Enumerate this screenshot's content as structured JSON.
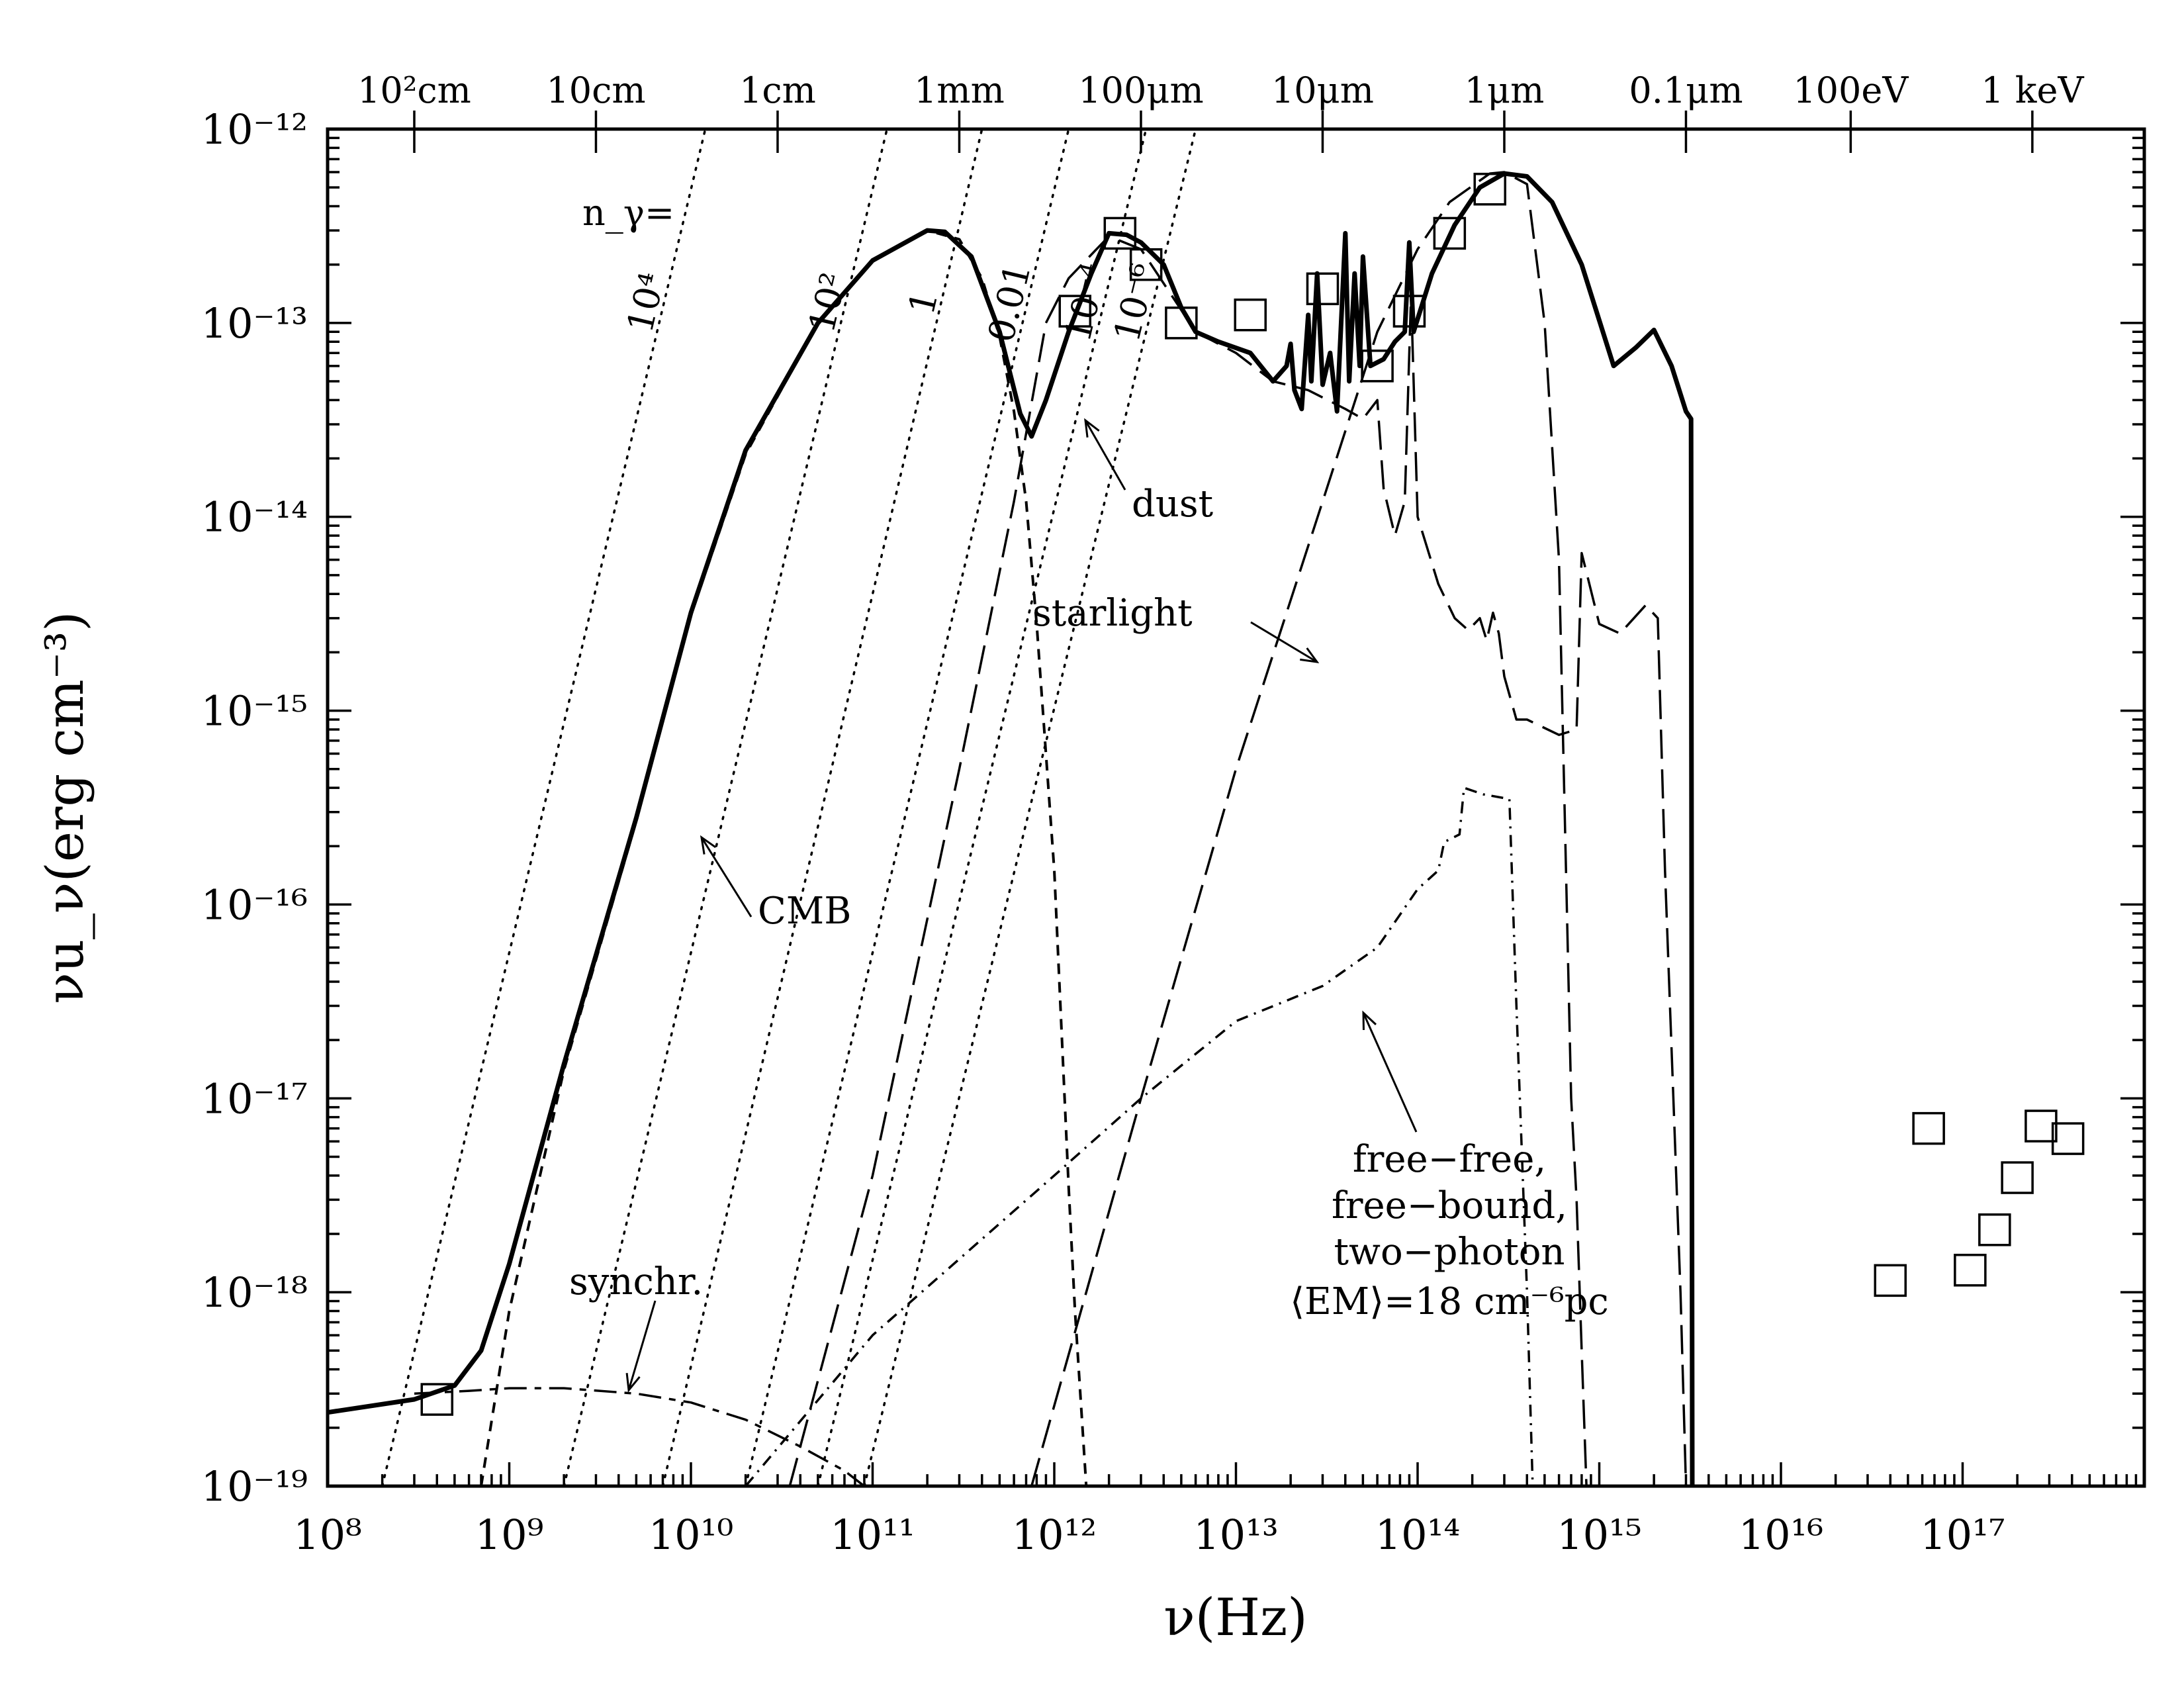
{
  "chart_data": {
    "type": "line",
    "xlabel": "ν(Hz)",
    "ylabel": "νu_ν(erg cm⁻³)",
    "x_scale": "log",
    "y_scale": "log",
    "xlim": [
      100000000.0,
      1e+18
    ],
    "ylim": [
      1e-19,
      1e-12
    ],
    "x_ticks": [
      {
        "value": 100000000.0,
        "label": "10⁸"
      },
      {
        "value": 1000000000.0,
        "label": "10⁹"
      },
      {
        "value": 10000000000.0,
        "label": "10¹⁰"
      },
      {
        "value": 100000000000.0,
        "label": "10¹¹"
      },
      {
        "value": 1000000000000.0,
        "label": "10¹²"
      },
      {
        "value": 10000000000000.0,
        "label": "10¹³"
      },
      {
        "value": 100000000000000.0,
        "label": "10¹⁴"
      },
      {
        "value": 1000000000000000.0,
        "label": "10¹⁵"
      },
      {
        "value": 1e+16,
        "label": "10¹⁶"
      },
      {
        "value": 1e+17,
        "label": "10¹⁷"
      }
    ],
    "y_ticks": [
      {
        "value": 1e-19,
        "label": "10⁻¹⁹"
      },
      {
        "value": 1e-18,
        "label": "10⁻¹⁸"
      },
      {
        "value": 1e-17,
        "label": "10⁻¹⁷"
      },
      {
        "value": 1e-16,
        "label": "10⁻¹⁶"
      },
      {
        "value": 1e-15,
        "label": "10⁻¹⁵"
      },
      {
        "value": 1e-14,
        "label": "10⁻¹⁴"
      },
      {
        "value": 1e-13,
        "label": "10⁻¹³"
      },
      {
        "value": 1e-12,
        "label": "10⁻¹²"
      }
    ],
    "top_ticks": [
      {
        "value": 300000000.0,
        "label": "10²cm"
      },
      {
        "value": 3000000000.0,
        "label": "10cm"
      },
      {
        "value": 30000000000.0,
        "label": "1cm"
      },
      {
        "value": 300000000000.0,
        "label": "1mm"
      },
      {
        "value": 3000000000000.0,
        "label": "100μm"
      },
      {
        "value": 30000000000000.0,
        "label": "10μm"
      },
      {
        "value": 300000000000000.0,
        "label": "1μm"
      },
      {
        "value": 3000000000000000.0,
        "label": "0.1μm"
      },
      {
        "value": 2.42e+16,
        "label": "100eV"
      },
      {
        "value": 2.42e+17,
        "label": "1 keV"
      }
    ],
    "photon_density_lines": [
      {
        "label": "10⁴",
        "x_at_bottom": 200000000.0,
        "x_at_top": 12000000000.0
      },
      {
        "label": "10²",
        "x_at_bottom": 2000000000.0,
        "x_at_top": 120000000000.0
      },
      {
        "label": "1",
        "x_at_bottom": 7000000000.0,
        "x_at_top": 400000000000.0
      },
      {
        "label": "0.01",
        "x_at_bottom": 20000000000.0,
        "x_at_top": 1200000000000.0
      },
      {
        "label": "10⁻⁴",
        "x_at_bottom": 50000000000.0,
        "x_at_top": 3200000000000.0
      },
      {
        "label": "10⁻⁶",
        "x_at_bottom": 90000000000.0,
        "x_at_top": 6000000000000.0
      }
    ],
    "n_gamma_label": "n_γ=",
    "series": [
      {
        "style": "solid-thick",
        "points": [
          [
            100000000.0,
            2.4e-19
          ],
          [
            300000000.0,
            2.8e-19
          ],
          [
            500000000.0,
            3.3e-19
          ],
          [
            700000000.0,
            5e-19
          ],
          [
            1000000000.0,
            1.4e-18
          ],
          [
            2000000000.0,
            1.5e-17
          ],
          [
            5000000000.0,
            2.8e-16
          ],
          [
            10000000000.0,
            3.2e-15
          ],
          [
            20000000000.0,
            2.2e-14
          ],
          [
            50000000000.0,
            1e-13
          ],
          [
            100000000000.0,
            2.1e-13
          ],
          [
            200000000000.0,
            3e-13
          ],
          [
            250000000000.0,
            2.95e-13
          ],
          [
            350000000000.0,
            2.2e-13
          ],
          [
            500000000000.0,
            9e-14
          ],
          [
            650000000000.0,
            3.4e-14
          ],
          [
            750000000000.0,
            2.6e-14
          ],
          [
            900000000000.0,
            4e-14
          ],
          [
            1200000000000.0,
            9e-14
          ],
          [
            1600000000000.0,
            1.8e-13
          ],
          [
            2000000000000.0,
            2.9e-13
          ],
          [
            2500000000000.0,
            2.85e-13
          ],
          [
            3000000000000.0,
            2.6e-13
          ],
          [
            4000000000000.0,
            2e-13
          ],
          [
            5000000000000.0,
            1.2e-13
          ],
          [
            6000000000000.0,
            9e-14
          ],
          [
            8000000000000.0,
            8e-14
          ],
          [
            12000000000000.0,
            7e-14
          ],
          [
            16000000000000.0,
            5e-14
          ],
          [
            19000000000000.0,
            6e-14
          ],
          [
            20000000000000.0,
            7.8e-14
          ],
          [
            21000000000000.0,
            4.5e-14
          ],
          [
            23000000000000.0,
            3.6e-14
          ],
          [
            25000000000000.0,
            1.1e-13
          ],
          [
            26000000000000.0,
            5e-14
          ],
          [
            28000000000000.0,
            1.8e-13
          ],
          [
            30000000000000.0,
            4.8e-14
          ],
          [
            33000000000000.0,
            7e-14
          ],
          [
            36000000000000.0,
            3.5e-14
          ],
          [
            40000000000000.0,
            2.9e-13
          ],
          [
            42000000000000.0,
            5e-14
          ],
          [
            45000000000000.0,
            1.8e-13
          ],
          [
            48000000000000.0,
            6e-14
          ],
          [
            50000000000000.0,
            2.2e-13
          ],
          [
            55000000000000.0,
            6e-14
          ],
          [
            65000000000000.0,
            6.5e-14
          ],
          [
            75000000000000.0,
            8e-14
          ],
          [
            85000000000000.0,
            9e-14
          ],
          [
            90000000000000.0,
            2.6e-13
          ],
          [
            95000000000000.0,
            9e-14
          ],
          [
            120000000000000.0,
            1.8e-13
          ],
          [
            160000000000000.0,
            3.2e-13
          ],
          [
            220000000000000.0,
            5e-13
          ],
          [
            300000000000000.0,
            5.9e-13
          ],
          [
            400000000000000.0,
            5.7e-13
          ],
          [
            550000000000000.0,
            4.2e-13
          ],
          [
            800000000000000.0,
            2e-13
          ],
          [
            1200000000000000.0,
            6e-14
          ],
          [
            1600000000000000.0,
            7.5e-14
          ],
          [
            2000000000000000.0,
            9.2e-14
          ],
          [
            2500000000000000.0,
            6e-14
          ],
          [
            3000000000000000.0,
            3.5e-14
          ],
          [
            3200000000000000.0,
            3.2e-14
          ],
          [
            3250000000000000.0,
            1e-19
          ]
        ]
      },
      {
        "style": "short-dash",
        "points": [
          [
            700000000.0,
            1e-19
          ],
          [
            1000000000.0,
            8e-19
          ],
          [
            2000000000.0,
            1.4e-17
          ],
          [
            5000000000.0,
            2.7e-16
          ],
          [
            10000000000.0,
            3.1e-15
          ],
          [
            20000000000.0,
            2.1e-14
          ],
          [
            50000000000.0,
            1e-13
          ],
          [
            100000000000.0,
            2.1e-13
          ],
          [
            200000000000.0,
            3e-13
          ],
          [
            300000000000.0,
            2.7e-13
          ],
          [
            400000000000.0,
            1.7e-13
          ],
          [
            500000000000.0,
            8.5e-14
          ],
          [
            600000000000.0,
            3.5e-14
          ],
          [
            700000000000.0,
            1.2e-14
          ],
          [
            800000000000.0,
            2.8e-15
          ],
          [
            1000000000000.0,
            1.5e-16
          ],
          [
            1200000000000.0,
            3.5e-18
          ],
          [
            1300000000000.0,
            8e-19
          ],
          [
            1500000000000.0,
            1e-19
          ]
        ]
      },
      {
        "style": "long-dash",
        "points": [
          [
            35000000000.0,
            1e-19
          ],
          [
            100000000000.0,
            4e-18
          ],
          [
            300000000000.0,
            5e-16
          ],
          [
            600000000000.0,
            1.2e-14
          ],
          [
            900000000000.0,
            1e-13
          ],
          [
            1200000000000.0,
            1.7e-13
          ],
          [
            2000000000000.0,
            2.8e-13
          ],
          [
            3000000000000.0,
            2.4e-13
          ],
          [
            4000000000000.0,
            1.6e-13
          ],
          [
            6000000000000.0,
            9e-14
          ],
          [
            10000000000000.0,
            7e-14
          ],
          [
            16000000000000.0,
            5e-14
          ],
          [
            25000000000000.0,
            4.5e-14
          ],
          [
            40000000000000.0,
            3.6e-14
          ],
          [
            50000000000000.0,
            3.2e-14
          ],
          [
            60000000000000.0,
            4e-14
          ],
          [
            65000000000000.0,
            1.4e-14
          ],
          [
            75000000000000.0,
            8e-15
          ],
          [
            85000000000000.0,
            1.2e-14
          ],
          [
            92000000000000.0,
            1.4e-13
          ],
          [
            100000000000000.0,
            1e-14
          ],
          [
            130000000000000.0,
            4.5e-15
          ],
          [
            160000000000000.0,
            3e-15
          ],
          [
            190000000000000.0,
            2.6e-15
          ],
          [
            220000000000000.0,
            3e-15
          ],
          [
            240000000000000.0,
            2.3e-15
          ],
          [
            260000000000000.0,
            3.2e-15
          ],
          [
            280000000000000.0,
            2.5e-15
          ],
          [
            300000000000000.0,
            1.5e-15
          ],
          [
            350000000000000.0,
            9e-16
          ],
          [
            400000000000000.0,
            9e-16
          ],
          [
            600000000000000.0,
            7.5e-16
          ],
          [
            750000000000000.0,
            8e-16
          ],
          [
            800000000000000.0,
            6.5e-15
          ],
          [
            1000000000000000.0,
            2.8e-15
          ],
          [
            1300000000000000.0,
            2.5e-15
          ],
          [
            1800000000000000.0,
            3.5e-15
          ],
          [
            2100000000000000.0,
            3e-15
          ],
          [
            2300000000000000.0,
            1.5e-16
          ],
          [
            2800000000000000.0,
            1e-18
          ],
          [
            3000000000000000.0,
            1e-19
          ]
        ]
      },
      {
        "style": "long-dash",
        "points": [
          [
            750000000000.0,
            1e-19
          ],
          [
            1500000000000.0,
            1e-18
          ],
          [
            3000000000000.0,
            1e-17
          ],
          [
            10000000000000.0,
            5e-16
          ],
          [
            30000000000000.0,
            1.2e-14
          ],
          [
            60000000000000.0,
            9e-14
          ],
          [
            100000000000000.0,
            2.4e-13
          ],
          [
            150000000000000.0,
            4.2e-13
          ],
          [
            250000000000000.0,
            5.9e-13
          ],
          [
            300000000000000.0,
            6e-13
          ],
          [
            400000000000000.0,
            5.2e-13
          ],
          [
            500000000000000.0,
            1e-13
          ],
          [
            600000000000000.0,
            6e-15
          ],
          [
            700000000000000.0,
            1e-17
          ],
          [
            750000000000000.0,
            3e-18
          ],
          [
            800000000000000.0,
            5e-19
          ],
          [
            850000000000000.0,
            1e-19
          ]
        ]
      },
      {
        "style": "dash-dot",
        "points": [
          [
            20000000000.0,
            1e-19
          ],
          [
            100000000000.0,
            6e-19
          ],
          [
            1000000000000.0,
            4e-18
          ],
          [
            3000000000000.0,
            1e-17
          ],
          [
            10000000000000.0,
            2.5e-17
          ],
          [
            30000000000000.0,
            3.8e-17
          ],
          [
            60000000000000.0,
            6e-17
          ],
          [
            100000000000000.0,
            1.2e-16
          ],
          [
            130000000000000.0,
            1.5e-16
          ],
          [
            140000000000000.0,
            2.1e-16
          ],
          [
            170000000000000.0,
            2.3e-16
          ],
          [
            180000000000000.0,
            4e-16
          ],
          [
            230000000000000.0,
            3.7e-16
          ],
          [
            320000000000000.0,
            3.5e-16
          ],
          [
            350000000000000.0,
            3e-17
          ],
          [
            400000000000000.0,
            1e-18
          ],
          [
            430000000000000.0,
            1e-19
          ]
        ]
      },
      {
        "style": "long-dash-short",
        "points": [
          [
            300000000.0,
            3e-19
          ],
          [
            600000000.0,
            3.1e-19
          ],
          [
            1000000000.0,
            3.2e-19
          ],
          [
            2000000000.0,
            3.2e-19
          ],
          [
            5000000000.0,
            3e-19
          ],
          [
            10000000000.0,
            2.7e-19
          ],
          [
            20000000000.0,
            2.2e-19
          ],
          [
            40000000000.0,
            1.6e-19
          ],
          [
            70000000000.0,
            1.2e-19
          ],
          [
            90000000000.0,
            1e-19
          ]
        ]
      }
    ],
    "data_points": [
      [
        400000000.0,
        2.8e-19
      ],
      [
        1300000000000.0,
        1.15e-13
      ],
      [
        2300000000000.0,
        2.9e-13
      ],
      [
        3200000000000.0,
        2e-13
      ],
      [
        5000000000000.0,
        1e-13
      ],
      [
        12000000000000.0,
        1.1e-13
      ],
      [
        30000000000000.0,
        1.5e-13
      ],
      [
        60000000000000.0,
        6e-14
      ],
      [
        90000000000000.0,
        1.15e-13
      ],
      [
        150000000000000.0,
        2.9e-13
      ],
      [
        250000000000000.0,
        4.9e-13
      ],
      [
        4e+16,
        1.15e-18
      ],
      [
        6.5e+16,
        7e-18
      ],
      [
        1.1e+17,
        1.3e-18
      ],
      [
        1.5e+17,
        2.1e-18
      ],
      [
        2e+17,
        3.9e-18
      ],
      [
        2.7e+17,
        7.2e-18
      ],
      [
        3.8e+17,
        6.2e-18
      ]
    ],
    "annotations": [
      {
        "text": "dust"
      },
      {
        "text": "starlight"
      },
      {
        "text": "CMB"
      },
      {
        "text": "synchr."
      },
      {
        "text": "free−free,"
      },
      {
        "text": "free−bound,"
      },
      {
        "text": "two−photon"
      },
      {
        "text": "⟨EM⟩=18 cm⁻⁶pc"
      }
    ]
  }
}
